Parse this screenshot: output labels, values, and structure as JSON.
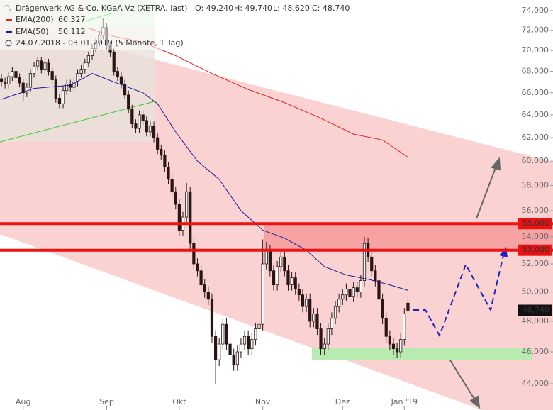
{
  "chart_data": {
    "type": "candlestick",
    "title": "Drägerwerk AG & Co. KGaA Vz (XETRA, last)",
    "ohlc_text": [
      "O: 49,240",
      "H: 49,740",
      "L: 48,620",
      "C: 48,740"
    ],
    "period": "24.07.2018 - 03.01.2019 (5 Monate, 1 Tag)",
    "log_scale": true,
    "ylim": [
      44000,
      74000
    ],
    "yticks": [
      {
        "value": 44000,
        "label": "44,000"
      },
      {
        "value": 46000,
        "label": "46,000"
      },
      {
        "value": 48000,
        "label": "48,000"
      },
      {
        "value": 50000,
        "label": "50,000"
      },
      {
        "value": 52000,
        "label": "52,000"
      },
      {
        "value": 54000,
        "label": "54,000"
      },
      {
        "value": 56000,
        "label": "56,000"
      },
      {
        "value": 58000,
        "label": "58,000"
      },
      {
        "value": 60000,
        "label": "60,000"
      },
      {
        "value": 62000,
        "label": "62,000"
      },
      {
        "value": 64000,
        "label": "64,000"
      },
      {
        "value": 66000,
        "label": "66,000"
      },
      {
        "value": 68000,
        "label": "68,000"
      },
      {
        "value": 70000,
        "label": "70,000"
      },
      {
        "value": 72000,
        "label": "72,000"
      },
      {
        "value": 74000,
        "label": "74,000"
      }
    ],
    "xticks": [
      {
        "value": 6,
        "label": "Aug"
      },
      {
        "value": 29,
        "label": "Sep"
      },
      {
        "value": 49,
        "label": "Okt"
      },
      {
        "value": 72,
        "label": "Nov"
      },
      {
        "value": 94,
        "label": "Dez"
      },
      {
        "value": 111,
        "label": "Jan '19"
      }
    ],
    "open": [
      67300,
      67000,
      66800,
      67500,
      68000,
      67400,
      66900,
      66000,
      66500,
      67800,
      68500,
      69000,
      68200,
      68800,
      68000,
      67200,
      65500,
      65000,
      66200,
      66800,
      66500,
      67000,
      67800,
      68200,
      68800,
      69500,
      70200,
      70800,
      71500,
      72300,
      70500,
      69800,
      68000,
      67500,
      66800,
      65800,
      64500,
      63200,
      62800,
      64000,
      63500,
      62500,
      63000,
      62000,
      61000,
      60500,
      59500,
      58500,
      57500,
      56500,
      54500,
      55500,
      57500,
      53500,
      52000,
      51500,
      50500,
      50000,
      49500,
      47000,
      45500,
      46500,
      47800,
      46500,
      45800,
      45200,
      46000,
      46500,
      47000,
      46200,
      46800,
      47500,
      47800,
      52000,
      53000,
      51500,
      50500,
      51800,
      52500,
      51500,
      50500,
      51000,
      50200,
      49800,
      49000,
      49500,
      48000,
      48500,
      47500,
      46200,
      46500,
      47500,
      48200,
      49000,
      49500,
      49800,
      50200,
      49700,
      50300,
      50000,
      50800,
      53500,
      52500,
      51500,
      50800,
      49500,
      48200,
      47000,
      46500,
      46200,
      46000,
      46800,
      49240
    ],
    "high": [
      67700,
      67400,
      67900,
      68400,
      68400,
      67800,
      67300,
      66900,
      68200,
      68900,
      69400,
      69400,
      69200,
      69200,
      68400,
      67600,
      65900,
      66600,
      67200,
      67200,
      67400,
      68200,
      68600,
      69200,
      69900,
      70600,
      71200,
      71900,
      73200,
      72700,
      70900,
      70200,
      68400,
      67900,
      67200,
      66200,
      64900,
      63600,
      64400,
      64400,
      63900,
      63400,
      63400,
      62400,
      61400,
      60900,
      59900,
      58900,
      57900,
      56900,
      55900,
      58200,
      57900,
      53900,
      52400,
      51900,
      50900,
      50400,
      49900,
      47400,
      46900,
      48200,
      48200,
      46900,
      46200,
      46400,
      46900,
      47400,
      47400,
      47200,
      47900,
      48200,
      53800,
      53600,
      53400,
      51900,
      52200,
      52900,
      52900,
      51900,
      51400,
      51400,
      50600,
      50200,
      49900,
      49900,
      48900,
      48900,
      47900,
      46900,
      47900,
      48600,
      49400,
      49900,
      50200,
      50600,
      50600,
      50700,
      50700,
      51200,
      54000,
      53900,
      52900,
      51900,
      51200,
      49900,
      48600,
      47400,
      46900,
      46600,
      47200,
      48900,
      49740
    ],
    "low": [
      66600,
      66400,
      66400,
      67100,
      67000,
      66500,
      65200,
      65600,
      66100,
      67400,
      68100,
      67800,
      67800,
      67600,
      66800,
      65100,
      64600,
      64600,
      65800,
      66100,
      66100,
      66600,
      67400,
      67800,
      68400,
      69100,
      69800,
      70400,
      71100,
      70100,
      69400,
      67600,
      67100,
      66400,
      65400,
      64100,
      62800,
      62400,
      62400,
      63100,
      62100,
      62100,
      61600,
      60600,
      60100,
      59100,
      58100,
      57100,
      56100,
      54100,
      54100,
      55100,
      53100,
      51600,
      51100,
      50100,
      49600,
      49100,
      46600,
      44000,
      45100,
      46100,
      46100,
      45400,
      44800,
      44800,
      45600,
      46100,
      45800,
      45800,
      46400,
      47100,
      47400,
      51600,
      51100,
      50100,
      50100,
      51400,
      51100,
      50100,
      50100,
      49800,
      49400,
      48600,
      48600,
      47600,
      47600,
      47100,
      45800,
      45800,
      46100,
      47100,
      47800,
      48600,
      49100,
      49400,
      49300,
      49300,
      49600,
      49600,
      50400,
      52100,
      51100,
      50400,
      49100,
      47800,
      46600,
      46100,
      45800,
      45600,
      45600,
      46400,
      48620
    ],
    "close": [
      67000,
      66800,
      67500,
      68000,
      67400,
      66900,
      66000,
      66500,
      67800,
      68500,
      69000,
      68200,
      68800,
      68000,
      67200,
      65500,
      65000,
      66200,
      66800,
      66500,
      67000,
      67800,
      68200,
      68800,
      69500,
      70200,
      70800,
      71500,
      72300,
      70500,
      69800,
      68000,
      67500,
      66800,
      65800,
      64500,
      63200,
      62800,
      64000,
      63500,
      62500,
      63000,
      62000,
      61000,
      60500,
      59500,
      58500,
      57500,
      56500,
      54500,
      55500,
      57500,
      53500,
      52000,
      51500,
      50500,
      50000,
      49500,
      47000,
      45500,
      46500,
      47800,
      46500,
      45800,
      45200,
      46000,
      46500,
      47000,
      46200,
      46800,
      47500,
      47800,
      52000,
      53000,
      51500,
      50500,
      51800,
      52500,
      51500,
      50500,
      51000,
      50200,
      49800,
      49000,
      49500,
      48000,
      48500,
      47500,
      46200,
      46500,
      47500,
      48200,
      49000,
      49500,
      49800,
      50200,
      49700,
      50300,
      50000,
      50800,
      53500,
      52500,
      51500,
      50800,
      49500,
      48200,
      47000,
      46500,
      46200,
      46000,
      46800,
      48500,
      48740
    ],
    "series": [
      {
        "name": "EMA(200)",
        "last_label": "60,327",
        "color": "#e02020",
        "x": [
          24,
          31,
          39,
          48,
          58,
          68,
          78,
          88,
          97,
          105,
          112
        ],
        "values": [
          72200,
          71400,
          70800,
          69500,
          67800,
          66300,
          65100,
          63700,
          62300,
          61800,
          60327
        ]
      },
      {
        "name": "EMA(50)",
        "last_label": "50,112",
        "color": "#1a1a9a",
        "x": [
          0,
          9,
          19,
          25,
          31,
          39,
          43,
          48,
          54,
          60,
          66,
          72,
          78,
          84,
          89,
          95,
          101,
          107,
          112
        ],
        "values": [
          65400,
          66400,
          66700,
          67800,
          67000,
          66000,
          65000,
          62500,
          60000,
          58500,
          56000,
          54500,
          53900,
          53000,
          51800,
          51200,
          50900,
          50500,
          50112
        ]
      }
    ],
    "hlines": [
      {
        "value": 55000,
        "label": "55,000",
        "color": "#ee1111"
      },
      {
        "value": 53000,
        "label": "53,000",
        "color": "#ee1111"
      }
    ],
    "last_price": {
      "value": 48740,
      "label": "48,740",
      "color": "#111111"
    }
  }
}
